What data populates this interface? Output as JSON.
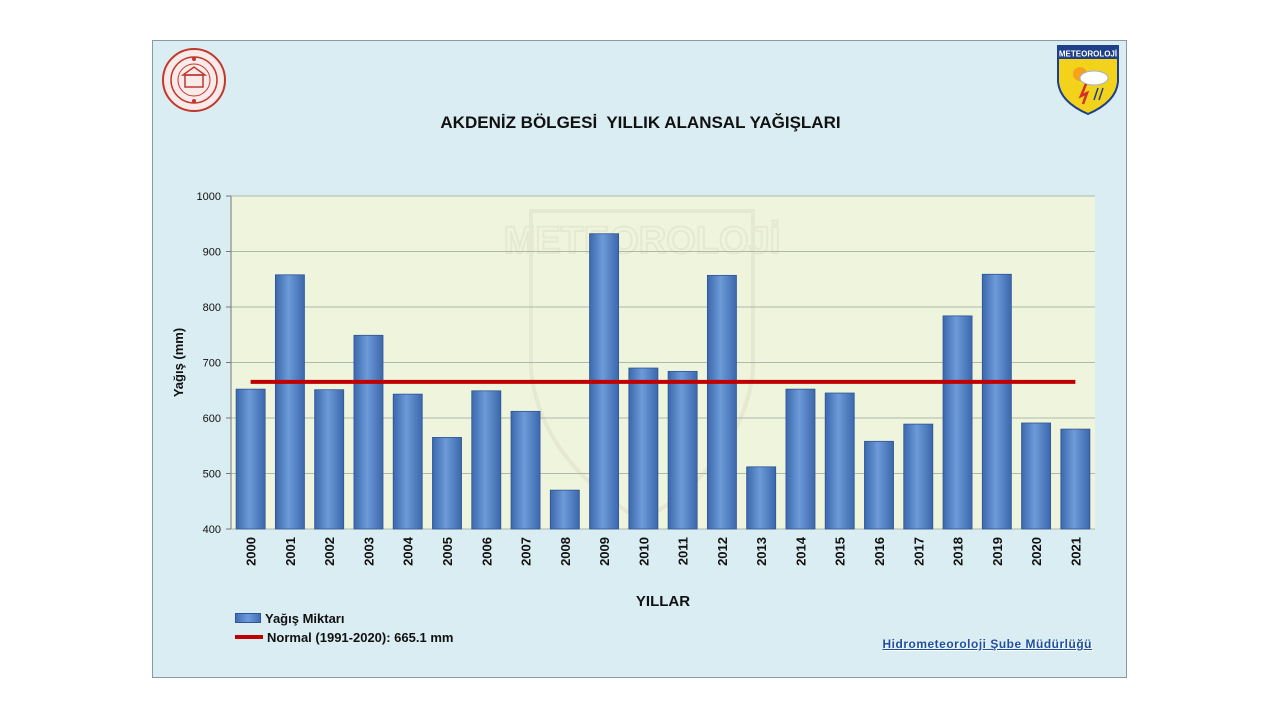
{
  "title": "AKDENİZ BÖLGESİ  YILLIK ALANSAL YAĞIŞLARI",
  "footer": "Hidrometeoroloji Şube Müdürlüğü",
  "logo_right_text": "METEOROLOJİ",
  "watermark_text": "METEOROLOJİ",
  "colors": {
    "bar": "#4f81c6",
    "normal_line": "#c00000",
    "plot_bg": "#eef5dc",
    "frame_bg": "#daedf2"
  },
  "chart_data": {
    "type": "bar",
    "ylabel": "Yağış (mm)",
    "xlabel": "YILLAR",
    "ylim": [
      400,
      1000
    ],
    "yticks": [
      400,
      500,
      600,
      700,
      800,
      900,
      1000
    ],
    "grid": true,
    "categories": [
      "2000",
      "2001",
      "2002",
      "2003",
      "2004",
      "2005",
      "2006",
      "2007",
      "2008",
      "2009",
      "2010",
      "2011",
      "2012",
      "2013",
      "2014",
      "2015",
      "2016",
      "2017",
      "2018",
      "2019",
      "2020",
      "2021"
    ],
    "series": [
      {
        "name": "Yağış Miktarı",
        "type": "bar",
        "values": [
          652,
          858,
          651,
          749,
          643,
          565,
          649,
          612,
          470,
          932,
          690,
          684,
          857,
          512,
          652,
          645,
          558,
          589,
          784,
          859,
          591,
          580
        ]
      },
      {
        "name": "Normal (1991-2020): 665.1 mm",
        "type": "line",
        "value": 665.1
      }
    ],
    "legend_position": "bottom-left"
  }
}
